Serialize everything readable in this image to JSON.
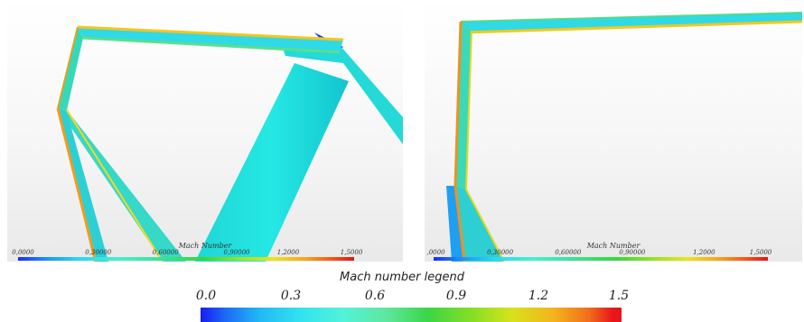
{
  "left_panel": {
    "legend": {
      "title": "Mach Number",
      "ticks": [
        "0,0000",
        "0,30000",
        "0,60000",
        "0,90000",
        "1,2000",
        "1,5000"
      ]
    }
  },
  "right_panel": {
    "legend": {
      "title": "Mach Number",
      "ticks": [
        ",0000",
        "0,30000",
        "0,60000",
        "0,90000",
        "1,2000",
        "1,5000"
      ]
    }
  },
  "main_legend": {
    "title": "Mach number legend",
    "ticks": [
      "0.0",
      "0.3",
      "0.6",
      "0.9",
      "1.2",
      "1.5"
    ],
    "range": [
      0.0,
      1.5
    ],
    "colors": {
      "low": "#1a1cf2",
      "mid": "#3ad646",
      "high": "#e8151b"
    }
  }
}
